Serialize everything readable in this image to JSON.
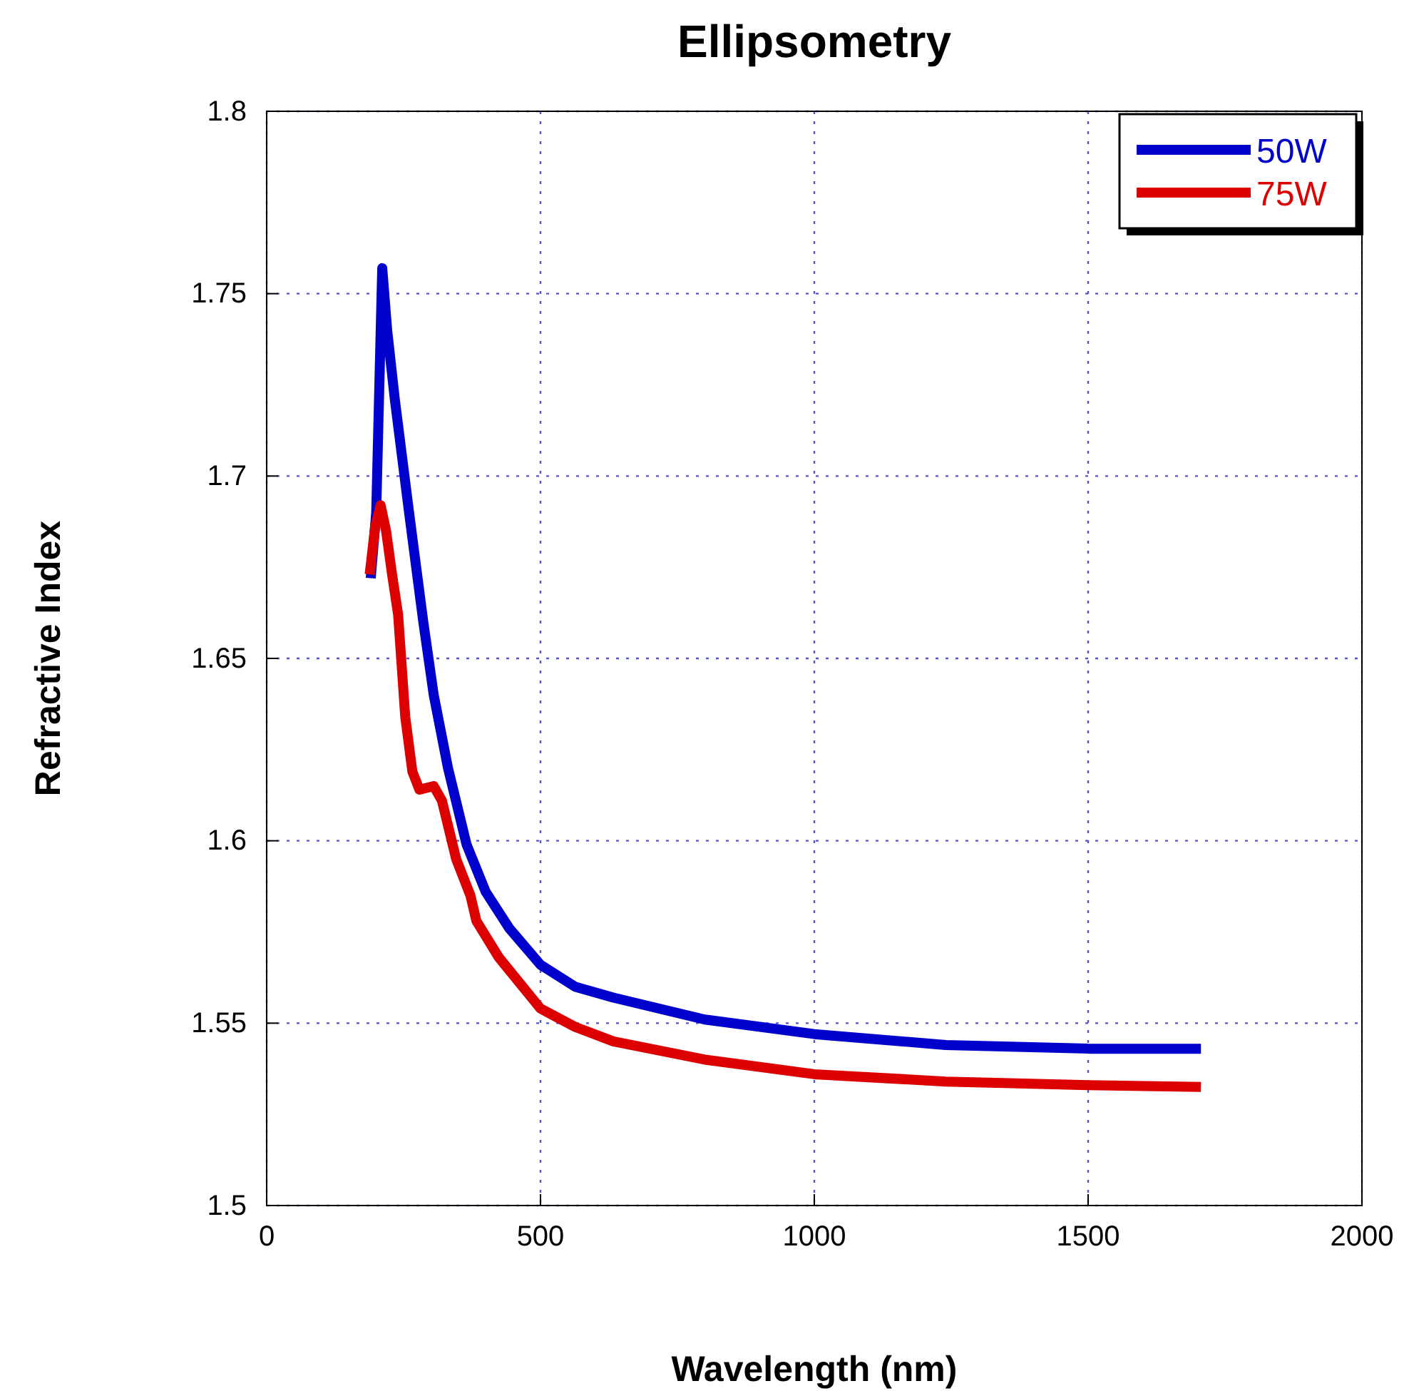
{
  "chart_data": {
    "type": "line",
    "title": "Ellipsometry",
    "xlabel": "Wavelength (nm)",
    "ylabel": "Refractive Index",
    "xlim": [
      0,
      2000
    ],
    "xticks": [
      0,
      500,
      1000,
      1500,
      2000
    ],
    "ylim": [
      1.5,
      1.8
    ],
    "yticks": [
      1.5,
      1.55,
      1.6,
      1.65,
      1.7,
      1.75,
      1.8
    ],
    "grid": true,
    "legend": "top right",
    "line_style": "solid",
    "marker": "none",
    "series": [
      {
        "name": "50W",
        "color": "#0000cc",
        "x": [
          190,
          200,
          211,
          220,
          234,
          260,
          286,
          305,
          331,
          365,
          400,
          443,
          500,
          563,
          633,
          800,
          1000,
          1240,
          1500,
          1706
        ],
        "values": [
          1.672,
          1.69,
          1.757,
          1.74,
          1.721,
          1.69,
          1.66,
          1.64,
          1.62,
          1.599,
          1.586,
          1.576,
          1.566,
          1.56,
          1.557,
          1.551,
          1.547,
          1.544,
          1.543,
          1.543
        ]
      },
      {
        "name": "75W",
        "color": "#dd0000",
        "x": [
          188,
          198,
          208,
          218,
          229,
          240,
          253,
          266,
          279,
          305,
          320,
          346,
          372,
          383,
          424,
          500,
          563,
          633,
          800,
          1000,
          1240,
          1500,
          1706
        ],
        "values": [
          1.673,
          1.686,
          1.692,
          1.685,
          1.673,
          1.662,
          1.634,
          1.619,
          1.614,
          1.615,
          1.611,
          1.595,
          1.585,
          1.578,
          1.568,
          1.554,
          1.549,
          1.545,
          1.54,
          1.536,
          1.534,
          1.533,
          1.5325
        ]
      }
    ]
  }
}
